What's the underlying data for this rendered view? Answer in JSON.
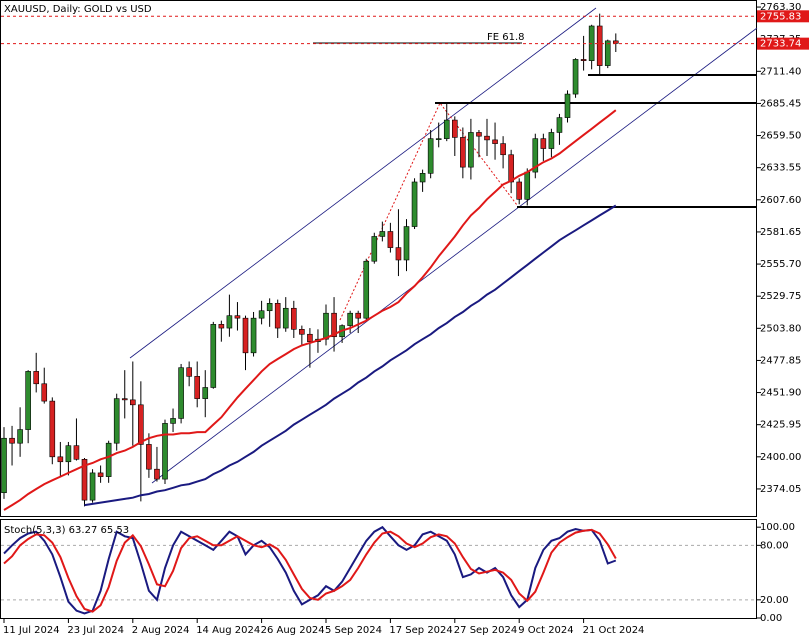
{
  "chart_data": [
    {
      "type": "candlestick",
      "title": "XAUUSD, Daily:  GOLD vs USD",
      "annotation": "FE 61.8",
      "categories": [
        "11 Jul 2024",
        null,
        null,
        null,
        null,
        null,
        null,
        null,
        "23 Jul 2024",
        null,
        null,
        null,
        null,
        null,
        null,
        null,
        "2 Aug 2024",
        null,
        null,
        null,
        null,
        null,
        null,
        null,
        "14 Aug 2024",
        null,
        null,
        null,
        null,
        null,
        null,
        null,
        "26 Aug 2024",
        null,
        null,
        null,
        null,
        null,
        null,
        null,
        "5 Sep 2024",
        null,
        null,
        null,
        null,
        null,
        null,
        null,
        "17 Sep 2024",
        null,
        null,
        null,
        null,
        null,
        null,
        null,
        "27 Sep 2024",
        null,
        null,
        null,
        null,
        null,
        null,
        null,
        "9 Oct 2024",
        null,
        null,
        null,
        null,
        null,
        null,
        null,
        "21 Oct 2024",
        null,
        null,
        null,
        null
      ],
      "open": [
        2371,
        2415,
        2411,
        2422,
        2469,
        2459,
        2445,
        2400,
        2396,
        2409,
        2398,
        2365,
        2387,
        2384,
        2411,
        2447,
        2446,
        2442,
        2410,
        2390,
        2382,
        2427,
        2431,
        2472,
        2465,
        2447,
        2456,
        2507,
        2504,
        2514,
        2512,
        2484,
        2512,
        2518,
        2524,
        2504,
        2520,
        2503,
        2499,
        2493,
        2495,
        2516,
        2497,
        2506,
        2516,
        2512,
        2558,
        2578,
        2582,
        2569,
        2559,
        2586,
        2622,
        2629,
        2657,
        2657,
        2672,
        2658,
        2634,
        2662,
        2659,
        2656,
        2653,
        2644,
        2622,
        2608,
        2630,
        2657,
        2649,
        2662,
        2674,
        2693,
        2721,
        2720,
        2748,
        2716,
        2736
      ],
      "high": [
        2424,
        2425,
        2440,
        2470,
        2484,
        2472,
        2448,
        2412,
        2412,
        2431,
        2399,
        2390,
        2393,
        2413,
        2451,
        2470,
        2477,
        2461,
        2419,
        2408,
        2430,
        2439,
        2475,
        2477,
        2477,
        2470,
        2509,
        2510,
        2531,
        2525,
        2514,
        2517,
        2526,
        2528,
        2527,
        2529,
        2526,
        2506,
        2504,
        2503,
        2523,
        2529,
        2507,
        2518,
        2518,
        2560,
        2581,
        2590,
        2589,
        2600,
        2592,
        2625,
        2632,
        2664,
        2670,
        2685,
        2675,
        2666,
        2673,
        2664,
        2673,
        2670,
        2659,
        2648,
        2625,
        2633,
        2661,
        2661,
        2665,
        2677,
        2696,
        2722,
        2740,
        2749,
        2758,
        2737,
        2742
      ],
      "low": [
        2366,
        2393,
        2400,
        2411,
        2452,
        2443,
        2394,
        2384,
        2385,
        2397,
        2360,
        2363,
        2379,
        2379,
        2405,
        2431,
        2409,
        2364,
        2383,
        2380,
        2378,
        2420,
        2427,
        2457,
        2440,
        2432,
        2455,
        2493,
        2497,
        2502,
        2470,
        2481,
        2507,
        2505,
        2496,
        2501,
        2496,
        2490,
        2472,
        2484,
        2490,
        2485,
        2492,
        2500,
        2500,
        2510,
        2556,
        2574,
        2565,
        2546,
        2550,
        2584,
        2614,
        2625,
        2650,
        2655,
        2643,
        2625,
        2624,
        2642,
        2643,
        2640,
        2633,
        2613,
        2604,
        2603,
        2625,
        2639,
        2642,
        2652,
        2670,
        2690,
        2712,
        2713,
        2708,
        2714,
        2727
      ],
      "close": [
        2415,
        2411,
        2422,
        2469,
        2459,
        2445,
        2400,
        2396,
        2409,
        2398,
        2365,
        2387,
        2384,
        2411,
        2447,
        2446,
        2442,
        2410,
        2390,
        2382,
        2427,
        2431,
        2472,
        2465,
        2447,
        2456,
        2507,
        2504,
        2514,
        2512,
        2484,
        2512,
        2518,
        2524,
        2504,
        2520,
        2503,
        2499,
        2493,
        2495,
        2516,
        2497,
        2506,
        2516,
        2512,
        2558,
        2578,
        2582,
        2569,
        2559,
        2586,
        2622,
        2629,
        2657,
        2657,
        2672,
        2658,
        2634,
        2662,
        2659,
        2656,
        2653,
        2644,
        2622,
        2608,
        2630,
        2657,
        2649,
        2662,
        2674,
        2693,
        2721,
        2720,
        2748,
        2716,
        2736,
        2734
      ],
      "up_color": "#2e8b2e",
      "down_color": "#d62222",
      "series": [
        {
          "color": "#e01818",
          "values": [
            2357,
            2361,
            2365,
            2370,
            2374,
            2378,
            2381,
            2384,
            2387,
            2390,
            2393,
            2395,
            2398,
            2400,
            2403,
            2405,
            2408,
            2412,
            2415,
            2417,
            2418,
            2418,
            2419,
            2419,
            2420,
            2420,
            2426,
            2432,
            2440,
            2448,
            2455,
            2462,
            2469,
            2475,
            2479,
            2483,
            2487,
            2490,
            2492,
            2494,
            2496,
            2499,
            2502,
            2504,
            2507,
            2510,
            2514,
            2518,
            2521,
            2525,
            2532,
            2538,
            2545,
            2553,
            2562,
            2570,
            2578,
            2587,
            2595,
            2601,
            2608,
            2614,
            2620,
            2623,
            2627,
            2630,
            2634,
            2638,
            2641,
            2645,
            2650,
            2655,
            2660,
            2665,
            2670,
            2675,
            2680
          ]
        },
        {
          "color": "#1a1a80",
          "values": [
            null,
            null,
            null,
            null,
            null,
            null,
            null,
            null,
            null,
            null,
            2361,
            2362,
            2363,
            2364,
            2365,
            2366,
            2367,
            2369,
            2370,
            2372,
            2373,
            2375,
            2377,
            2378,
            2380,
            2382,
            2386,
            2389,
            2393,
            2396,
            2400,
            2404,
            2409,
            2413,
            2417,
            2421,
            2426,
            2430,
            2434,
            2438,
            2442,
            2447,
            2451,
            2455,
            2460,
            2464,
            2469,
            2473,
            2478,
            2482,
            2486,
            2491,
            2495,
            2499,
            2504,
            2508,
            2513,
            2517,
            2522,
            2526,
            2531,
            2535,
            2540,
            2545,
            2550,
            2555,
            2560,
            2565,
            2570,
            2575,
            2579,
            2583,
            2587,
            2591,
            2595,
            2599,
            2603
          ]
        }
      ],
      "price_lines": [
        2755.83,
        2733.74
      ],
      "price_line_color": "#e01818",
      "ylim": [
        2353,
        2769
      ],
      "yticks": [
        {
          "value": 2763.3,
          "label": "2763.30"
        },
        {
          "value": 2737.35,
          "label": "2737.35"
        },
        {
          "value": 2711.4,
          "label": "2711.40"
        },
        {
          "value": 2685.45,
          "label": "2685.45"
        },
        {
          "value": 2659.5,
          "label": "2659.50"
        },
        {
          "value": 2633.55,
          "label": "2633.55"
        },
        {
          "value": 2607.6,
          "label": "2607.60"
        },
        {
          "value": 2581.65,
          "label": "2581.65"
        },
        {
          "value": 2555.7,
          "label": "2555.70"
        },
        {
          "value": 2529.75,
          "label": "2529.75"
        },
        {
          "value": 2503.8,
          "label": "2503.80"
        },
        {
          "value": 2477.85,
          "label": "2477.85"
        },
        {
          "value": 2451.9,
          "label": "2451.90"
        },
        {
          "value": 2425.95,
          "label": "2425.95"
        },
        {
          "value": 2400,
          "label": "2400.00"
        },
        {
          "value": 2374.05,
          "label": "2374.05"
        }
      ],
      "grid": false
    },
    {
      "type": "line",
      "title": "Stoch(5,3,3)",
      "series": [
        {
          "color": "#1a1a80",
          "values": [
            71,
            80,
            88,
            93,
            95,
            85,
            70,
            45,
            18,
            8,
            5,
            8,
            30,
            65,
            95,
            90,
            88,
            60,
            30,
            20,
            55,
            80,
            95,
            90,
            85,
            80,
            75,
            85,
            95,
            90,
            70,
            80,
            85,
            78,
            65,
            50,
            30,
            15,
            20,
            25,
            35,
            30,
            40,
            55,
            70,
            85,
            95,
            100,
            90,
            80,
            75,
            80,
            92,
            95,
            90,
            85,
            70,
            45,
            48,
            55,
            50,
            55,
            45,
            25,
            12,
            20,
            55,
            75,
            85,
            88,
            95,
            98,
            96,
            97,
            85,
            60,
            63.27
          ]
        },
        {
          "color": "#e01818",
          "values": [
            60,
            68,
            80,
            87,
            92,
            91,
            83,
            67,
            44,
            24,
            10,
            7,
            14,
            34,
            63,
            83,
            91,
            79,
            59,
            37,
            35,
            52,
            77,
            88,
            90,
            85,
            80,
            80,
            85,
            90,
            85,
            80,
            78,
            81,
            76,
            64,
            48,
            32,
            22,
            20,
            27,
            30,
            35,
            42,
            55,
            70,
            83,
            93,
            95,
            90,
            82,
            78,
            82,
            89,
            92,
            90,
            82,
            67,
            54,
            49,
            51,
            53,
            50,
            42,
            27,
            19,
            29,
            50,
            72,
            83,
            89,
            94,
            96,
            97,
            93,
            81,
            65.53
          ]
        }
      ],
      "ylim": [
        0,
        109
      ],
      "yticks": [
        {
          "value": 100,
          "label": "100.00"
        },
        {
          "value": 80,
          "label": "80.00"
        },
        {
          "value": 20,
          "label": "20.00"
        },
        {
          "value": 0,
          "label": "0.00"
        }
      ],
      "levels": [
        80,
        20
      ]
    }
  ]
}
